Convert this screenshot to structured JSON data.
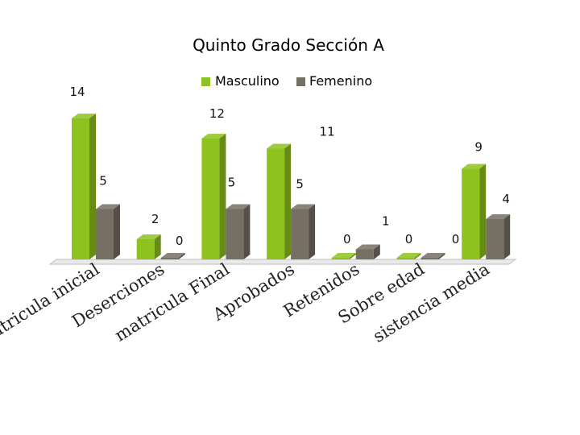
{
  "chart_data": {
    "type": "bar",
    "title": "Quinto Grado Sección   A",
    "categories": [
      "Matricula inicial",
      "Deserciones",
      "matricula Final",
      "Aprobados",
      "Retenidos",
      "Sobre edad",
      "sistencia media"
    ],
    "series": [
      {
        "name": "Masculino",
        "values": [
          14,
          2,
          12,
          11,
          0,
          0,
          9
        ],
        "color": "#8dc21f"
      },
      {
        "name": "Femenino",
        "values": [
          5,
          0,
          5,
          5,
          1,
          0,
          4
        ],
        "color": "#756f64"
      }
    ],
    "value_labels": {
      "Masculino": [
        "14",
        "2",
        "12",
        "11",
        "0",
        "0",
        "9"
      ],
      "Femenino": [
        "5",
        "0",
        "5",
        "5",
        "1",
        "0",
        "4"
      ]
    },
    "xlabel": "",
    "ylabel": "",
    "ylim": [
      0,
      14
    ],
    "grid": false,
    "legend": "top-center",
    "style": "3d-clustered-bar"
  }
}
